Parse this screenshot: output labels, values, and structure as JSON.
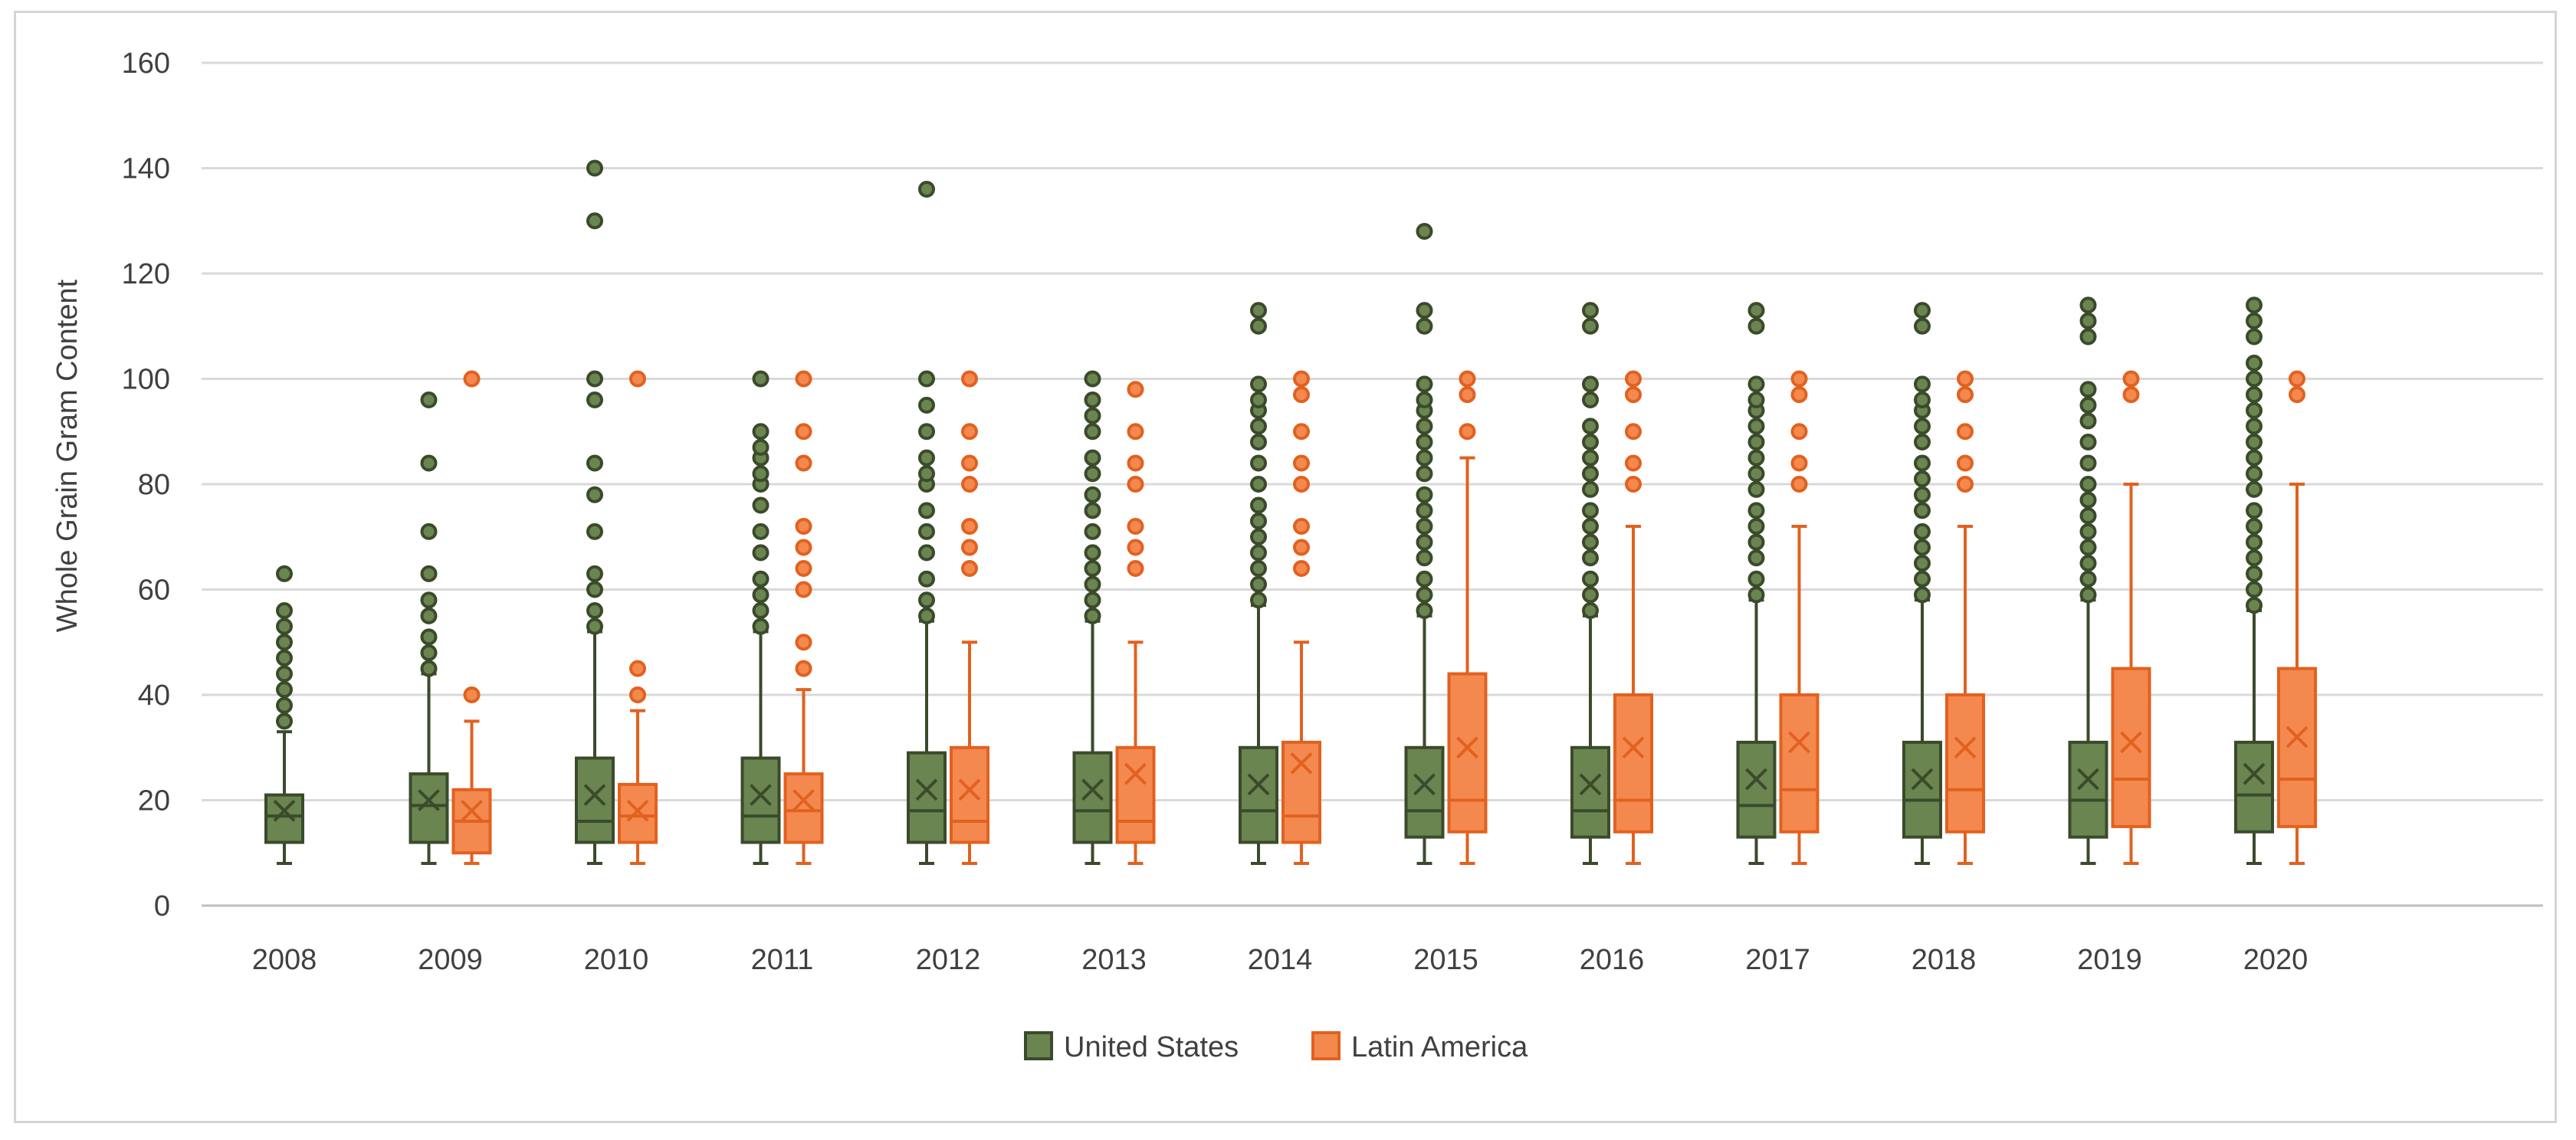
{
  "chart_data": {
    "type": "boxplot",
    "title": "",
    "xlabel": "",
    "ylabel": "Whole Grain Gram Content",
    "ylim": [
      0,
      160
    ],
    "yticks": [
      "0",
      "20",
      "40",
      "60",
      "80",
      "100",
      "120",
      "140",
      "160"
    ],
    "grid": true,
    "legend_position": "bottom",
    "categories": [
      "2008",
      "2009",
      "2010",
      "2011",
      "2012",
      "2013",
      "2014",
      "2015",
      "2016",
      "2017",
      "2018",
      "2019",
      "2020"
    ],
    "series": [
      {
        "name": "United States",
        "color": "#5a7244",
        "fill": "#6a8550",
        "stroke": "#3b4a2b",
        "boxes": [
          {
            "min": 8,
            "q1": 12,
            "median": 17,
            "q3": 21,
            "max": 33,
            "mean": 18,
            "outliers": [
              35,
              38,
              41,
              44,
              47,
              50,
              53,
              56,
              63
            ]
          },
          {
            "min": 8,
            "q1": 12,
            "median": 19,
            "q3": 25,
            "max": 44,
            "mean": 20,
            "outliers": [
              45,
              48,
              51,
              55,
              58,
              63,
              71,
              84,
              96
            ]
          },
          {
            "min": 8,
            "q1": 12,
            "median": 16,
            "q3": 28,
            "max": 52,
            "mean": 21,
            "outliers": [
              53,
              56,
              60,
              63,
              71,
              78,
              84,
              96,
              100,
              130,
              140
            ]
          },
          {
            "min": 8,
            "q1": 12,
            "median": 17,
            "q3": 28,
            "max": 52,
            "mean": 21,
            "outliers": [
              53,
              56,
              59,
              62,
              67,
              71,
              76,
              80,
              82,
              85,
              87,
              90,
              100
            ]
          },
          {
            "min": 8,
            "q1": 12,
            "median": 18,
            "q3": 29,
            "max": 54,
            "mean": 22,
            "outliers": [
              55,
              58,
              62,
              67,
              71,
              75,
              80,
              82,
              85,
              90,
              95,
              100,
              136
            ]
          },
          {
            "min": 8,
            "q1": 12,
            "median": 18,
            "q3": 29,
            "max": 54,
            "mean": 22,
            "outliers": [
              55,
              58,
              61,
              64,
              67,
              71,
              75,
              78,
              82,
              85,
              90,
              93,
              96,
              100
            ]
          },
          {
            "min": 8,
            "q1": 12,
            "median": 18,
            "q3": 30,
            "max": 57,
            "mean": 23,
            "outliers": [
              58,
              61,
              64,
              67,
              70,
              73,
              76,
              80,
              84,
              88,
              91,
              94,
              96,
              99,
              110,
              113
            ]
          },
          {
            "min": 8,
            "q1": 13,
            "median": 18,
            "q3": 30,
            "max": 55,
            "mean": 23,
            "outliers": [
              56,
              59,
              62,
              66,
              69,
              72,
              75,
              78,
              82,
              85,
              88,
              91,
              94,
              96,
              99,
              110,
              113,
              128
            ]
          },
          {
            "min": 8,
            "q1": 13,
            "median": 18,
            "q3": 30,
            "max": 55,
            "mean": 23,
            "outliers": [
              56,
              59,
              62,
              66,
              69,
              72,
              75,
              79,
              82,
              85,
              88,
              91,
              96,
              99,
              110,
              113
            ]
          },
          {
            "min": 8,
            "q1": 13,
            "median": 19,
            "q3": 31,
            "max": 58,
            "mean": 24,
            "outliers": [
              59,
              62,
              66,
              69,
              72,
              75,
              79,
              82,
              85,
              88,
              91,
              94,
              96,
              99,
              110,
              113
            ]
          },
          {
            "min": 8,
            "q1": 13,
            "median": 20,
            "q3": 31,
            "max": 58,
            "mean": 24,
            "outliers": [
              59,
              62,
              65,
              68,
              71,
              75,
              78,
              81,
              84,
              88,
              91,
              94,
              96,
              99,
              110,
              113
            ]
          },
          {
            "min": 8,
            "q1": 13,
            "median": 20,
            "q3": 31,
            "max": 58,
            "mean": 24,
            "outliers": [
              59,
              62,
              65,
              68,
              71,
              74,
              77,
              80,
              84,
              88,
              92,
              95,
              98,
              108,
              111,
              114
            ]
          },
          {
            "min": 8,
            "q1": 14,
            "median": 21,
            "q3": 31,
            "max": 56,
            "mean": 25,
            "outliers": [
              57,
              60,
              63,
              66,
              69,
              72,
              75,
              79,
              82,
              85,
              88,
              91,
              94,
              97,
              100,
              103,
              108,
              111,
              114
            ]
          }
        ]
      },
      {
        "name": "Latin America",
        "color": "#f4894f",
        "fill": "#f4894f",
        "stroke": "#e2611f",
        "boxes": [
          null,
          {
            "min": 8,
            "q1": 10,
            "median": 16,
            "q3": 22,
            "max": 35,
            "mean": 18,
            "outliers": [
              40,
              100
            ]
          },
          {
            "min": 8,
            "q1": 12,
            "median": 17,
            "q3": 23,
            "max": 37,
            "mean": 18,
            "outliers": [
              40,
              45,
              100
            ]
          },
          {
            "min": 8,
            "q1": 12,
            "median": 18,
            "q3": 25,
            "max": 41,
            "mean": 20,
            "outliers": [
              45,
              50,
              60,
              64,
              68,
              72,
              84,
              90,
              100
            ]
          },
          {
            "min": 8,
            "q1": 12,
            "median": 16,
            "q3": 30,
            "max": 50,
            "mean": 22,
            "outliers": [
              64,
              68,
              72,
              80,
              84,
              90,
              100
            ]
          },
          {
            "min": 8,
            "q1": 12,
            "median": 16,
            "q3": 30,
            "max": 50,
            "mean": 25,
            "outliers": [
              64,
              68,
              72,
              80,
              84,
              90,
              98
            ]
          },
          {
            "min": 8,
            "q1": 12,
            "median": 17,
            "q3": 31,
            "max": 50,
            "mean": 27,
            "outliers": [
              64,
              68,
              72,
              80,
              84,
              90,
              97,
              100
            ]
          },
          {
            "min": 8,
            "q1": 14,
            "median": 20,
            "q3": 44,
            "max": 85,
            "mean": 30,
            "outliers": [
              90,
              97,
              100
            ]
          },
          {
            "min": 8,
            "q1": 14,
            "median": 20,
            "q3": 40,
            "max": 72,
            "mean": 30,
            "outliers": [
              80,
              84,
              90,
              97,
              100
            ]
          },
          {
            "min": 8,
            "q1": 14,
            "median": 22,
            "q3": 40,
            "max": 72,
            "mean": 31,
            "outliers": [
              80,
              84,
              90,
              97,
              100
            ]
          },
          {
            "min": 8,
            "q1": 14,
            "median": 22,
            "q3": 40,
            "max": 72,
            "mean": 30,
            "outliers": [
              80,
              84,
              90,
              97,
              100
            ]
          },
          {
            "min": 8,
            "q1": 15,
            "median": 24,
            "q3": 45,
            "max": 80,
            "mean": 31,
            "outliers": [
              97,
              100
            ]
          },
          {
            "min": 8,
            "q1": 15,
            "median": 24,
            "q3": 45,
            "max": 80,
            "mean": 32,
            "outliers": [
              97,
              100
            ]
          }
        ]
      }
    ]
  }
}
